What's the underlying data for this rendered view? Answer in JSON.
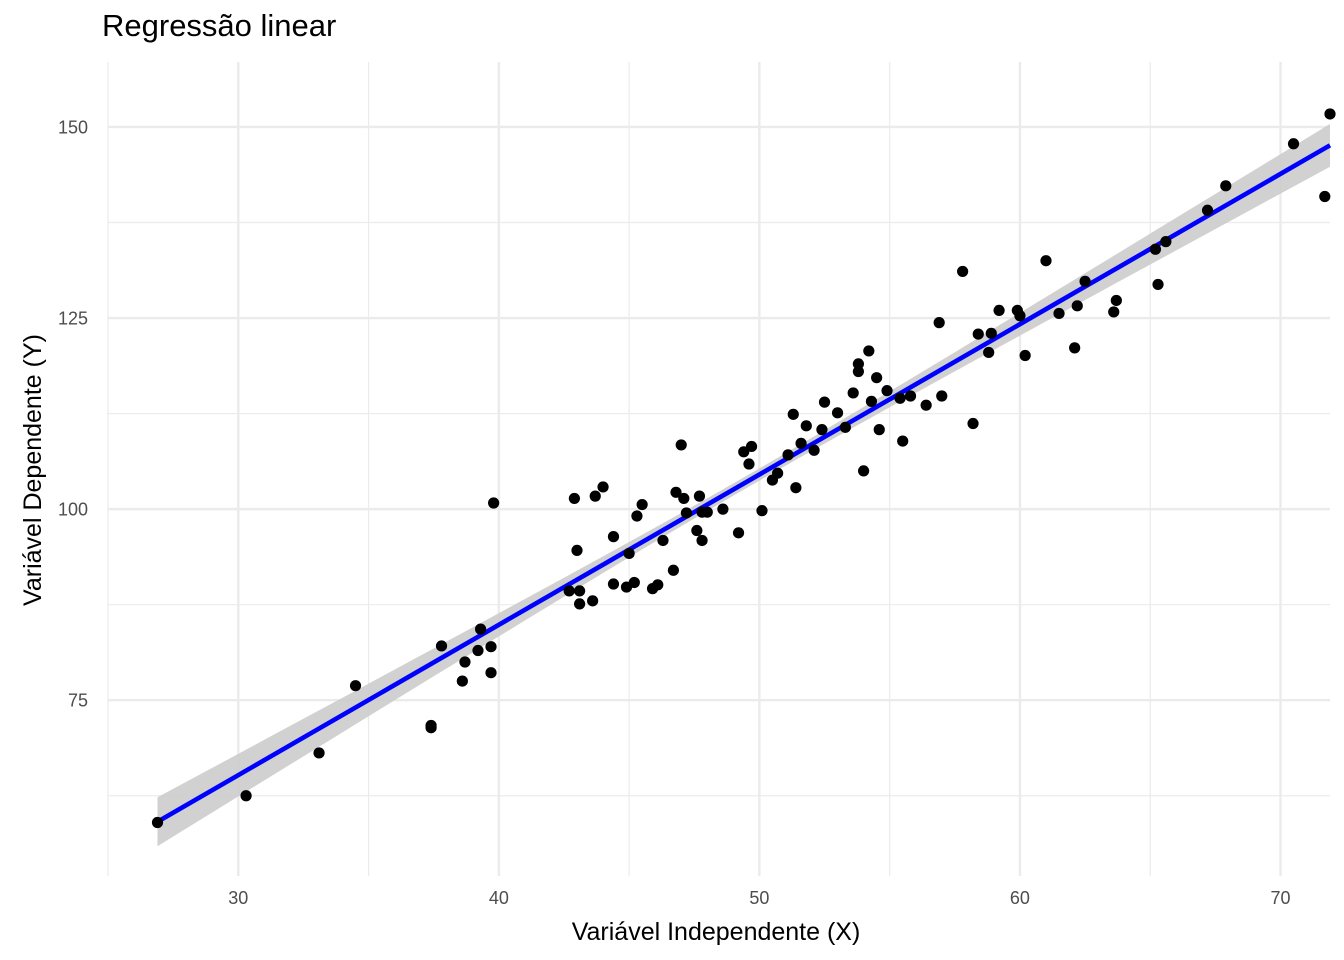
{
  "chart_data": {
    "type": "scatter",
    "title": "Regressão linear",
    "xlabel": "Variável Independente (X)",
    "ylabel": "Variável Dependente (Y)",
    "xlim": [
      25,
      71.9
    ],
    "ylim": [
      52,
      158.5
    ],
    "x_ticks": [
      30,
      40,
      50,
      60,
      70
    ],
    "y_ticks": [
      75,
      100,
      125,
      150
    ],
    "grid": true,
    "colors": {
      "points": "#000000",
      "line": "#0000ff",
      "band": "#cccccc",
      "grid": "#ebebeb"
    },
    "regression": {
      "x": [
        26.9,
        71.9
      ],
      "y": [
        59.1,
        147.6
      ]
    },
    "band_halfwidth": {
      "x": [
        26.9,
        49.4,
        71.9
      ],
      "hw": [
        3.2,
        0.8,
        2.8
      ]
    },
    "points": [
      [
        26.9,
        59.0
      ],
      [
        30.3,
        62.5
      ],
      [
        33.1,
        68.1
      ],
      [
        34.5,
        76.9
      ],
      [
        37.4,
        71.7
      ],
      [
        37.4,
        71.4
      ],
      [
        37.8,
        82.1
      ],
      [
        38.6,
        77.5
      ],
      [
        38.7,
        80.0
      ],
      [
        39.2,
        81.5
      ],
      [
        39.3,
        84.3
      ],
      [
        39.7,
        82.0
      ],
      [
        39.7,
        78.6
      ],
      [
        39.8,
        100.8
      ],
      [
        42.7,
        89.3
      ],
      [
        42.9,
        101.4
      ],
      [
        43.0,
        94.6
      ],
      [
        43.1,
        87.6
      ],
      [
        43.1,
        89.3
      ],
      [
        43.6,
        88.0
      ],
      [
        43.7,
        101.7
      ],
      [
        44.0,
        102.9
      ],
      [
        44.4,
        96.4
      ],
      [
        44.4,
        90.2
      ],
      [
        44.9,
        89.8
      ],
      [
        45.0,
        94.2
      ],
      [
        45.2,
        90.4
      ],
      [
        45.3,
        99.1
      ],
      [
        45.5,
        100.6
      ],
      [
        45.9,
        89.6
      ],
      [
        46.1,
        90.1
      ],
      [
        46.3,
        95.9
      ],
      [
        46.7,
        92.0
      ],
      [
        46.8,
        102.2
      ],
      [
        47.0,
        108.4
      ],
      [
        47.1,
        101.4
      ],
      [
        47.2,
        99.5
      ],
      [
        47.6,
        97.2
      ],
      [
        47.7,
        101.7
      ],
      [
        47.8,
        95.9
      ],
      [
        47.8,
        99.6
      ],
      [
        48.0,
        99.6
      ],
      [
        48.6,
        100.0
      ],
      [
        49.2,
        96.9
      ],
      [
        49.4,
        107.5
      ],
      [
        49.6,
        105.9
      ],
      [
        49.7,
        108.2
      ],
      [
        50.1,
        99.8
      ],
      [
        50.5,
        103.8
      ],
      [
        50.7,
        104.7
      ],
      [
        51.1,
        107.1
      ],
      [
        51.3,
        112.4
      ],
      [
        51.4,
        102.8
      ],
      [
        51.6,
        108.6
      ],
      [
        51.8,
        110.9
      ],
      [
        52.1,
        107.7
      ],
      [
        52.4,
        110.4
      ],
      [
        52.5,
        114.0
      ],
      [
        53.0,
        112.6
      ],
      [
        53.3,
        110.7
      ],
      [
        53.6,
        115.2
      ],
      [
        53.8,
        118.0
      ],
      [
        53.8,
        119.0
      ],
      [
        54.0,
        105.0
      ],
      [
        54.2,
        120.7
      ],
      [
        54.3,
        114.1
      ],
      [
        54.5,
        117.2
      ],
      [
        54.6,
        110.4
      ],
      [
        54.9,
        115.5
      ],
      [
        55.4,
        114.5
      ],
      [
        55.5,
        108.9
      ],
      [
        55.8,
        114.8
      ],
      [
        56.4,
        113.6
      ],
      [
        56.9,
        124.4
      ],
      [
        57.0,
        114.8
      ],
      [
        57.8,
        131.1
      ],
      [
        58.2,
        111.2
      ],
      [
        58.4,
        122.9
      ],
      [
        58.8,
        120.5
      ],
      [
        58.9,
        123.0
      ],
      [
        59.2,
        126.0
      ],
      [
        59.9,
        126.0
      ],
      [
        60.0,
        125.3
      ],
      [
        60.2,
        120.1
      ],
      [
        61.0,
        132.5
      ],
      [
        61.5,
        125.6
      ],
      [
        62.1,
        121.1
      ],
      [
        62.2,
        126.6
      ],
      [
        62.5,
        129.8
      ],
      [
        63.6,
        125.8
      ],
      [
        63.7,
        127.3
      ],
      [
        65.2,
        134.0
      ],
      [
        65.3,
        129.4
      ],
      [
        65.6,
        135.0
      ],
      [
        67.2,
        139.1
      ],
      [
        67.9,
        142.3
      ],
      [
        70.5,
        147.8
      ],
      [
        71.7,
        140.9
      ],
      [
        71.9,
        151.7
      ]
    ]
  }
}
